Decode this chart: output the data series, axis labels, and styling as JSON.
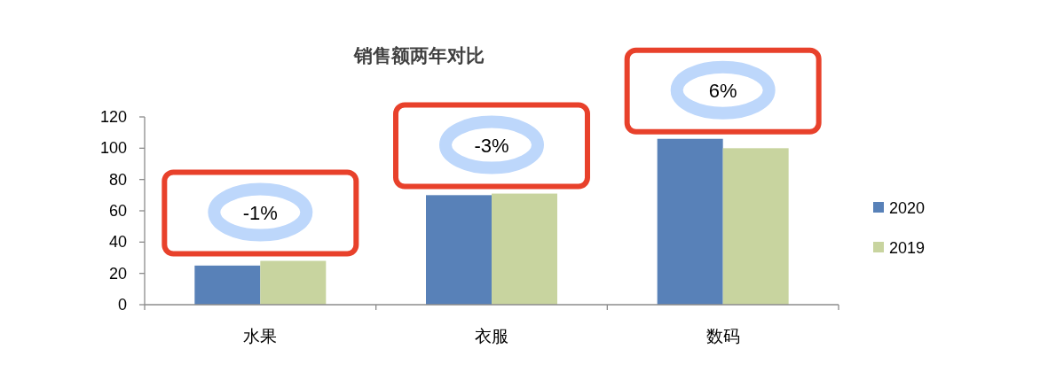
{
  "chart_data": {
    "type": "bar",
    "title": "销售额两年对比",
    "categories": [
      "水果",
      "衣服",
      "数码"
    ],
    "series": [
      {
        "name": "2020",
        "color": "#5881b8",
        "values": [
          25,
          70,
          106
        ]
      },
      {
        "name": "2019",
        "color": "#c8d49f",
        "values": [
          28,
          71,
          100
        ]
      }
    ],
    "ylim": [
      0,
      120
    ],
    "yticks": [
      0,
      20,
      40,
      60,
      80,
      100,
      120
    ],
    "grid": false,
    "legend": "right",
    "annotations": [
      "-1%",
      "-3%",
      "6%"
    ]
  }
}
